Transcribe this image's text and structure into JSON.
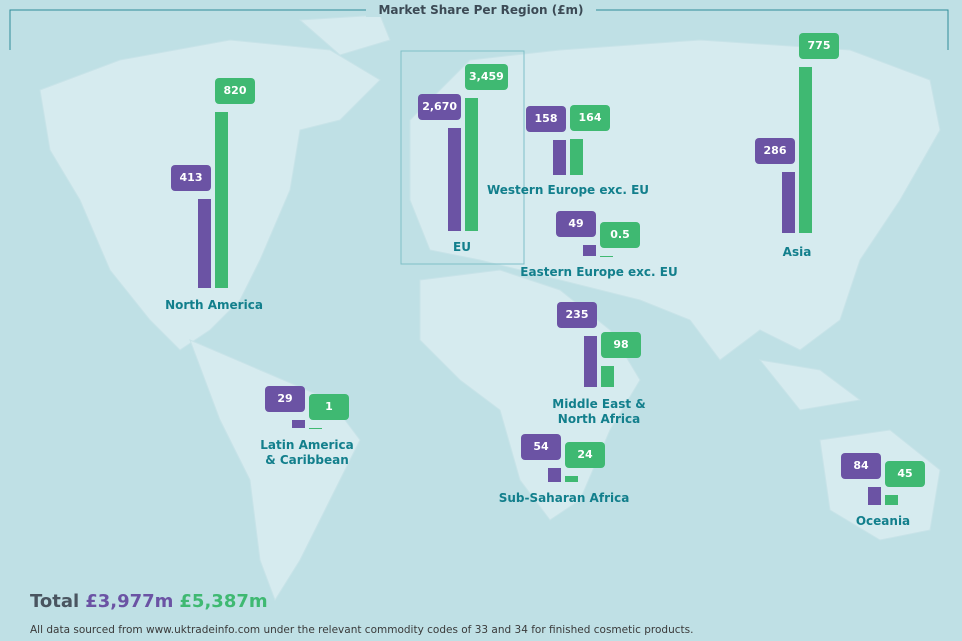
{
  "title": "Market Share Per Region (£m)",
  "colors": [
    "#6b53a4",
    "#3fb972"
  ],
  "regions": [
    {
      "name": "North America",
      "values": [
        413,
        820
      ]
    },
    {
      "name": "EU",
      "values": [
        2670,
        3459
      ],
      "value_labels": [
        "2,670",
        "3,459"
      ]
    },
    {
      "name": "Western Europe exc. EU",
      "values": [
        158,
        164
      ]
    },
    {
      "name": "Eastern Europe exc. EU",
      "values": [
        49,
        0.5
      ]
    },
    {
      "name": "Asia",
      "values": [
        286,
        775
      ]
    },
    {
      "name": "Middle East & North Africa",
      "values": [
        235,
        98
      ]
    },
    {
      "name": "Latin America & Caribbean",
      "values": [
        29,
        1
      ]
    },
    {
      "name": "Sub-Saharan Africa",
      "values": [
        54,
        24
      ]
    },
    {
      "name": "Oceania",
      "values": [
        84,
        45
      ]
    }
  ],
  "total": {
    "label": "Total",
    "value_labels": [
      "£3,977m",
      "£5,387m"
    ]
  },
  "source": "All data sourced from www.uktradeinfo.com under the relevant commodity codes of 33 and 34 for finished cosmetic products."
}
